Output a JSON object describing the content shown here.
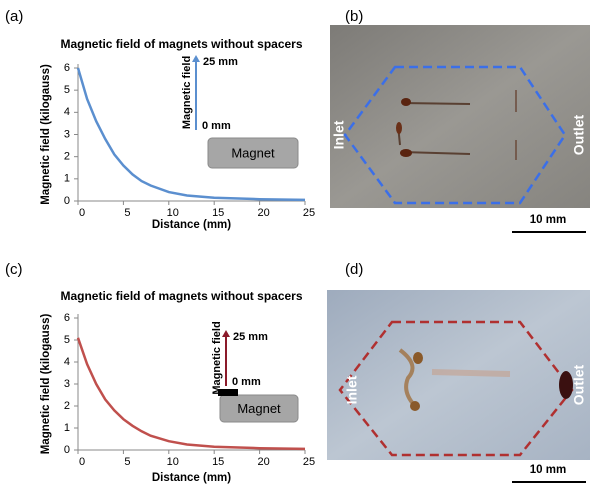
{
  "panel_labels": [
    "(a)",
    "(b)",
    "(c)",
    "(d)"
  ],
  "chart_data": [
    {
      "type": "line",
      "title": "Magnetic field of magnets without spacers",
      "x_label": "Distance (mm)",
      "y_label": "Magnetic field (kilogauss)",
      "x": [
        0,
        1,
        2,
        3,
        4,
        5,
        6,
        7,
        8,
        10,
        12,
        15,
        20,
        25
      ],
      "values": [
        6.0,
        4.6,
        3.6,
        2.8,
        2.1,
        1.6,
        1.2,
        0.9,
        0.7,
        0.4,
        0.25,
        0.15,
        0.08,
        0.05
      ],
      "color": "#5b8fcf",
      "xlim": [
        0,
        25
      ],
      "xticks": [
        0,
        5,
        10,
        15,
        20,
        25
      ],
      "ylim": [
        0,
        6
      ],
      "yticks": [
        0,
        1,
        2,
        3,
        4,
        5,
        6
      ],
      "annotations": {
        "arrow": "Magnetic field",
        "top": "25 mm",
        "bottom": "0 mm",
        "box": "Magnet"
      }
    },
    {
      "type": "line",
      "title": "Magnetic field of magnets without spacers",
      "x_label": "Distance (mm)",
      "y_label": "Magnetic field (kilogauss)",
      "x": [
        0,
        1,
        2,
        3,
        4,
        5,
        6,
        7,
        8,
        10,
        12,
        15,
        20,
        25
      ],
      "values": [
        5.1,
        3.9,
        3.0,
        2.3,
        1.8,
        1.4,
        1.1,
        0.85,
        0.65,
        0.4,
        0.25,
        0.15,
        0.08,
        0.05
      ],
      "color": "#c0504d",
      "xlim": [
        0,
        25
      ],
      "xticks": [
        0,
        5,
        10,
        15,
        20,
        25
      ],
      "ylim": [
        0,
        6
      ],
      "yticks": [
        0,
        1,
        2,
        3,
        4,
        5,
        6
      ],
      "annotations": {
        "arrow": "Magnetic field",
        "top": "25 mm",
        "bottom": "0 mm",
        "box": "Magnet"
      }
    }
  ],
  "photos": [
    {
      "left_label": "Inlet",
      "right_label": "Outlet",
      "scale_bar": "10 mm"
    },
    {
      "left_label": "Inlet",
      "right_label": "Outlet",
      "scale_bar": "10 mm"
    }
  ]
}
